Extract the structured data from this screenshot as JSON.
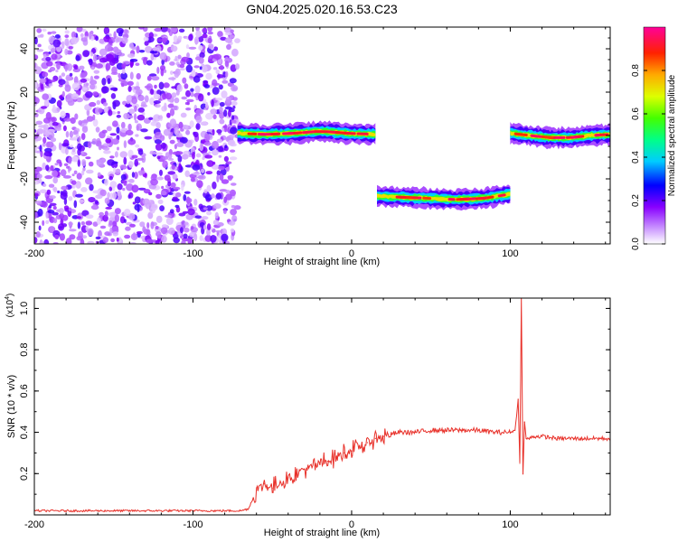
{
  "title": "GN04.2025.020.16.53.C23",
  "chart_data": [
    {
      "type": "heatmap",
      "xlabel": "Height of straight line (km)",
      "ylabel": "Frequency (Hz)",
      "xlim": [
        -200,
        163
      ],
      "ylim": [
        -50,
        50
      ],
      "xticks": [
        -200,
        -100,
        0,
        100
      ],
      "yticks": [
        -40,
        -20,
        0,
        20,
        40
      ],
      "colorbar": {
        "label": "Normalized spectral amplitude",
        "range": [
          0,
          1
        ],
        "ticks": [
          "0.0",
          "0.2",
          "0.4",
          "0.6",
          "0.8"
        ],
        "tick_values": [
          0,
          0.2,
          0.4,
          0.6,
          0.8
        ],
        "colormap": [
          "#ffffff",
          "#8800ff",
          "#0000ff",
          "#00ffff",
          "#00ff00",
          "#ffff00",
          "#ff0000",
          "#ff00aa"
        ]
      },
      "noise_region": {
        "x": [
          -200,
          -72
        ],
        "freq": [
          -50,
          50
        ],
        "amplitude": [
          0.0,
          0.3
        ]
      },
      "tracks": [
        {
          "x": [
            -72,
            15
          ],
          "freq": [
            1,
            0.5,
            1,
            2,
            1,
            0.5
          ],
          "peak_amplitude": 0.95
        },
        {
          "x": [
            16,
            100
          ],
          "freq": [
            -28,
            -28.5,
            -29,
            -29.5,
            -29,
            -27
          ],
          "peak_amplitude": 0.95
        },
        {
          "x": [
            100,
            163
          ],
          "freq": [
            1,
            0,
            -1,
            -1,
            0,
            0.5
          ],
          "peak_amplitude": 0.95
        }
      ]
    },
    {
      "type": "line",
      "xlabel": "Height of straight line (km)",
      "ylabel": "SNR (10 * v/v)",
      "multiplier": "(x10",
      "multiplier_exp": "4",
      "multiplier_close": ")",
      "xlim": [
        -200,
        163
      ],
      "ylim": [
        0,
        1.05
      ],
      "xticks": [
        -200,
        -100,
        0,
        100
      ],
      "yticks": [
        "0.2",
        "0.4",
        "0.6",
        "0.8",
        "1.0"
      ],
      "ytick_values": [
        0.2,
        0.4,
        0.6,
        0.8,
        1.0
      ],
      "series": [
        {
          "color": "#e8312a",
          "x": [
            -200,
            -150,
            -100,
            -70,
            -65,
            -60,
            -55,
            -50,
            -45,
            -40,
            -35,
            -30,
            -25,
            -20,
            -15,
            -10,
            -5,
            0,
            5,
            10,
            15,
            20,
            25,
            30,
            40,
            50,
            60,
            70,
            80,
            90,
            95,
            100,
            103,
            105,
            106,
            107,
            108,
            109,
            110,
            112,
            115,
            120,
            130,
            140,
            150,
            163
          ],
          "y": [
            0.02,
            0.02,
            0.02,
            0.02,
            0.03,
            0.12,
            0.15,
            0.13,
            0.16,
            0.18,
            0.2,
            0.22,
            0.23,
            0.25,
            0.26,
            0.28,
            0.3,
            0.31,
            0.33,
            0.35,
            0.37,
            0.38,
            0.39,
            0.4,
            0.4,
            0.41,
            0.41,
            0.41,
            0.41,
            0.4,
            0.4,
            0.4,
            0.41,
            0.56,
            0.25,
            1.05,
            0.2,
            0.45,
            0.37,
            0.37,
            0.38,
            0.38,
            0.37,
            0.37,
            0.37,
            0.37
          ]
        }
      ]
    }
  ]
}
